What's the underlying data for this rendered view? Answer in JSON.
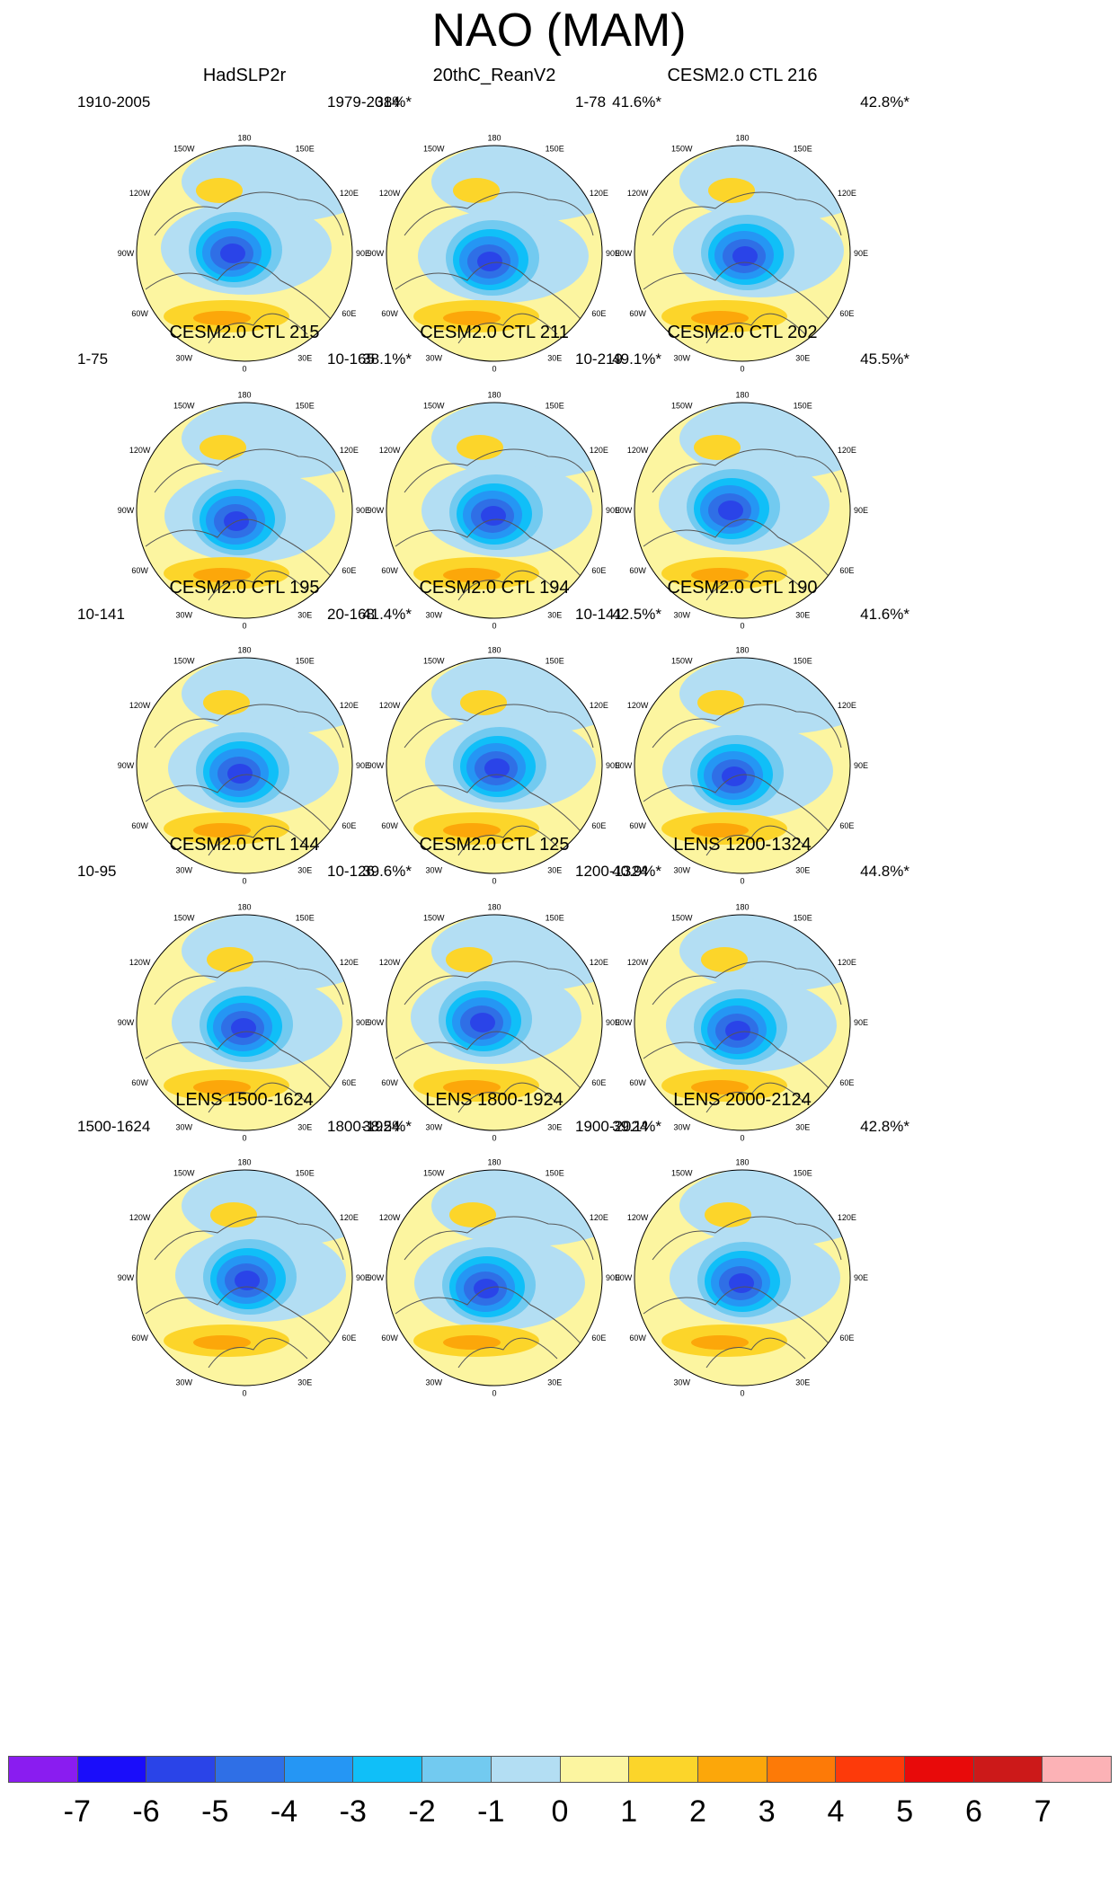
{
  "title": "NAO (MAM)",
  "lon_labels": [
    "180",
    "150E",
    "120E",
    "90E",
    "60E",
    "30E",
    "0",
    "30W",
    "60W",
    "90W",
    "120W",
    "150W"
  ],
  "panels": [
    {
      "title": "HadSLP2r",
      "period": "1910-2005",
      "pct": "38%*"
    },
    {
      "title": "20thC_ReanV2",
      "period": "1979-2014",
      "pct": "41.6%*"
    },
    {
      "title": "CESM2.0 CTL 216",
      "period": "1-78",
      "pct": "42.8%*"
    },
    {
      "title": "CESM2.0 CTL 215",
      "period": "1-75",
      "pct": "38.1%*"
    },
    {
      "title": "CESM2.0 CTL 211",
      "period": "10-165",
      "pct": "49.1%*"
    },
    {
      "title": "CESM2.0 CTL 202",
      "period": "10-219",
      "pct": "45.5%*"
    },
    {
      "title": "CESM2.0 CTL 195",
      "period": "10-141",
      "pct": "41.4%*"
    },
    {
      "title": "CESM2.0 CTL 194",
      "period": "20-168",
      "pct": "42.5%*"
    },
    {
      "title": "CESM2.0 CTL 190",
      "period": "10-141",
      "pct": "41.6%*"
    },
    {
      "title": "CESM2.0 CTL 144",
      "period": "10-95",
      "pct": "39.6%*"
    },
    {
      "title": "CESM2.0 CTL 125",
      "period": "10-126",
      "pct": "40.9%*"
    },
    {
      "title": "LENS 1200-1324",
      "period": "1200-1324",
      "pct": "44.8%*"
    },
    {
      "title": "LENS 1500-1624",
      "period": "1500-1624",
      "pct": "38.5%*"
    },
    {
      "title": "LENS 1800-1924",
      "period": "1800-1924",
      "pct": "39.1%*"
    },
    {
      "title": "LENS 2000-2124",
      "period": "1900-2024",
      "pct": "42.8%*"
    }
  ],
  "colorbar": {
    "colors": [
      "#8a1cf0",
      "#1a0dfa",
      "#2a44e8",
      "#2f6fe6",
      "#2596f4",
      "#10bff8",
      "#72caf0",
      "#b3def3",
      "#fcf5a0",
      "#fcd52a",
      "#fca70a",
      "#fd7a07",
      "#fd3a0a",
      "#e80a0a",
      "#cc1919",
      "#fcb2b6"
    ],
    "labels": [
      "-7",
      "-6",
      "-5",
      "-4",
      "-3",
      "-2",
      "-1",
      "0",
      "1",
      "2",
      "3",
      "4",
      "5",
      "6",
      "7"
    ]
  }
}
